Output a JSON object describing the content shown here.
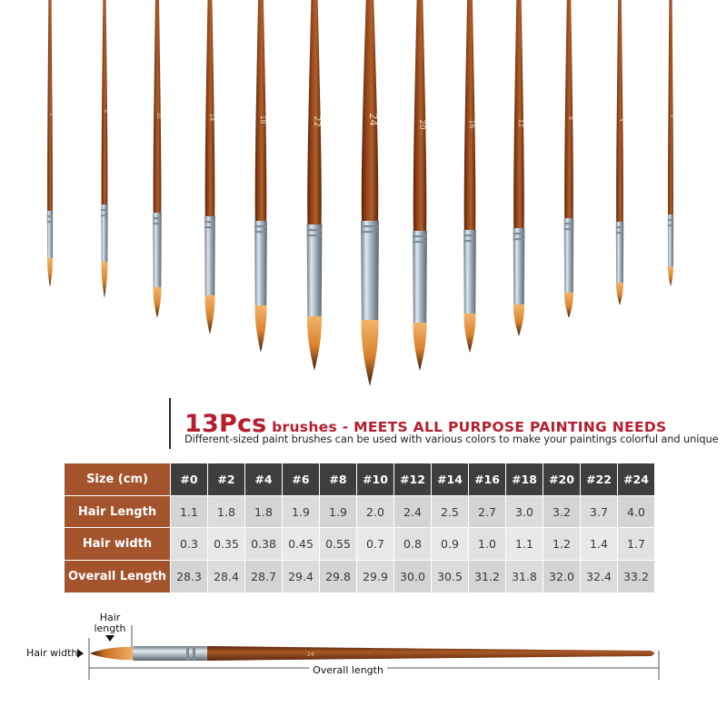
{
  "brush_numbers": [
    "2",
    "6",
    "10",
    "14",
    "18",
    "22",
    "24",
    "20",
    "16",
    "12",
    "8",
    "4",
    "0"
  ],
  "heading": {
    "count": "13Pcs",
    "title_rest": " brushes - MEETS ALL PURPOSE PAINTING NEEDS",
    "subtitle": "Different-sized paint brushes can be used with various colors to make your paintings colorful and unique"
  },
  "table": {
    "corner_label": "Size (cm)",
    "sizes": [
      "#0",
      "#2",
      "#4",
      "#6",
      "#8",
      "#10",
      "#12",
      "#14",
      "#16",
      "#18",
      "#20",
      "#22",
      "#24"
    ],
    "rows": [
      {
        "label": "Hair Length",
        "values": [
          "1.1",
          "1.8",
          "1.8",
          "1.9",
          "1.9",
          "2.0",
          "2.4",
          "2.5",
          "2.7",
          "3.0",
          "3.2",
          "3.7",
          "4.0"
        ]
      },
      {
        "label": "Hair width",
        "values": [
          "0.3",
          "0.35",
          "0.38",
          "0.45",
          "0.55",
          "0.7",
          "0.8",
          "0.9",
          "1.0",
          "1.1",
          "1.2",
          "1.4",
          "1.7"
        ]
      },
      {
        "label": "Overall Length",
        "values": [
          "28.3",
          "28.4",
          "28.7",
          "29.4",
          "29.8",
          "29.9",
          "30.0",
          "30.5",
          "31.2",
          "31.8",
          "32.0",
          "32.4",
          "33.2"
        ]
      }
    ]
  },
  "diagram": {
    "hair_length_label_1": "Hair",
    "hair_length_label_2": "length",
    "hair_width_label": "Hair width",
    "overall_length_label": "Overall length",
    "brush_number": "24"
  },
  "colors": {
    "heading_red": "#b51e2e",
    "row_label_brown": "#a4542d",
    "header_dark": "#3e3e3e",
    "handle_brown": "#8a3a12",
    "ferrule_silver": "#b8c3cc",
    "bristle_orange": "#e39a45"
  }
}
